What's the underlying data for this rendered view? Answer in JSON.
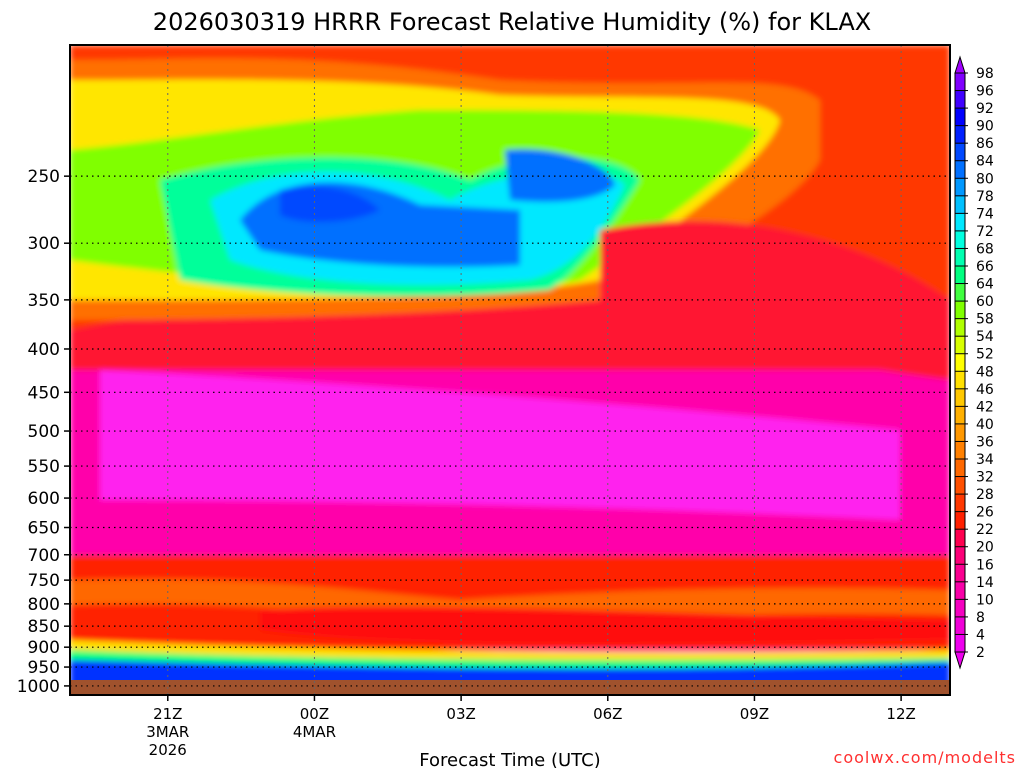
{
  "chart_data": {
    "type": "heatmap",
    "title": "2026030319 HRRR Forecast Relative Humidity (%) for KLAX",
    "xlabel": "Forecast Time (UTC)",
    "ylabel": "",
    "credit": "coolwx.com/modelts",
    "x_ticks": [
      {
        "label": "21Z",
        "sub1": "3MAR",
        "sub2": "2026",
        "hour": 21
      },
      {
        "label": "00Z",
        "sub1": "4MAR",
        "sub2": "",
        "hour": 24
      },
      {
        "label": "03Z",
        "sub1": "",
        "sub2": "",
        "hour": 27
      },
      {
        "label": "06Z",
        "sub1": "",
        "sub2": "",
        "hour": 30
      },
      {
        "label": "09Z",
        "sub1": "",
        "sub2": "",
        "hour": 33
      },
      {
        "label": "12Z",
        "sub1": "",
        "sub2": "",
        "hour": 36
      }
    ],
    "xlim": [
      19,
      37
    ],
    "y_ticks": [
      250,
      300,
      350,
      400,
      450,
      500,
      550,
      600,
      650,
      700,
      750,
      800,
      850,
      900,
      950,
      1000
    ],
    "ylim": [
      1025,
      175
    ],
    "y_scale": "log-pressure",
    "colorbar_levels": [
      2,
      4,
      8,
      10,
      14,
      16,
      20,
      22,
      26,
      28,
      32,
      34,
      36,
      40,
      42,
      46,
      48,
      52,
      54,
      58,
      60,
      64,
      66,
      68,
      72,
      74,
      78,
      80,
      84,
      86,
      90,
      92,
      96,
      98
    ],
    "colorbar_colors": [
      "#ee00ee",
      "#f000d8",
      "#f500c0",
      "#f800a8",
      "#fa0090",
      "#fc0078",
      "#ff0050",
      "#ff2000",
      "#ff3800",
      "#ff5000",
      "#ff6800",
      "#ff8000",
      "#ff9800",
      "#ffb000",
      "#ffc800",
      "#ffe000",
      "#ffff00",
      "#d8ff00",
      "#b0ff00",
      "#80ff00",
      "#40ff40",
      "#00ff80",
      "#00ffb0",
      "#00ffe0",
      "#00e8ff",
      "#00c0ff",
      "#0098ff",
      "#0070ff",
      "#0048ff",
      "#0020ff",
      "#0000ff",
      "#4000ff",
      "#8000ff",
      "#a000ff"
    ],
    "ground_color": "#a0522d"
  }
}
